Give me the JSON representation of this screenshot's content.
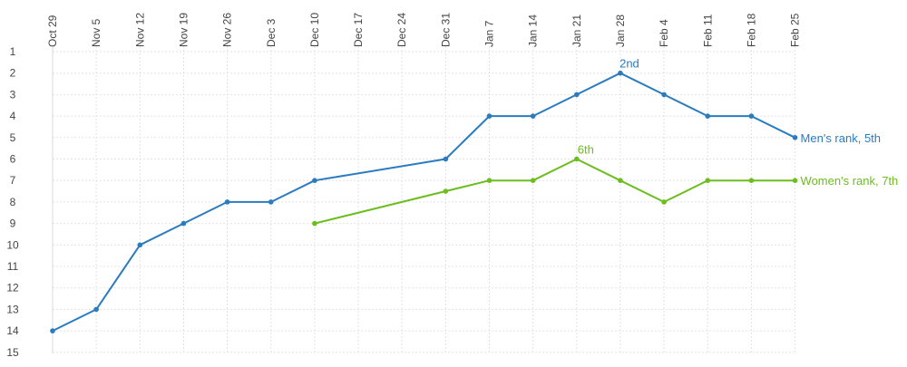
{
  "chart_data": {
    "type": "line",
    "x": [
      "Oct 29",
      "Nov 5",
      "Nov 12",
      "Nov 19",
      "Nov 26",
      "Dec 3",
      "Dec 10",
      "Dec 17",
      "Dec 24",
      "Dec 31",
      "Jan 7",
      "Jan 14",
      "Jan 21",
      "Jan 28",
      "Feb 4",
      "Feb 11",
      "Feb 18",
      "Feb 25"
    ],
    "y_ticks": [
      "1",
      "2",
      "3",
      "4",
      "5",
      "6",
      "7",
      "8",
      "9",
      "10",
      "11",
      "12",
      "13",
      "14",
      "15"
    ],
    "ylim": [
      1,
      15
    ],
    "y_inverted": true,
    "grid": true,
    "series": [
      {
        "name": "Men's rank, 5th",
        "color": "#2b7bbf",
        "values": [
          14,
          13,
          10,
          9,
          8,
          8,
          7,
          null,
          null,
          6,
          4,
          4,
          3,
          2,
          3,
          4,
          4,
          5
        ],
        "annotation": {
          "text": "2nd",
          "x": "Jan 28"
        }
      },
      {
        "name": "Women's rank, 7th",
        "color": "#6cbd1f",
        "values": [
          null,
          null,
          null,
          null,
          null,
          null,
          9,
          null,
          null,
          7.5,
          7,
          7,
          6,
          7,
          8,
          7,
          7,
          7
        ],
        "annotation": {
          "text": "6th",
          "x": "Jan 21"
        }
      }
    ]
  }
}
